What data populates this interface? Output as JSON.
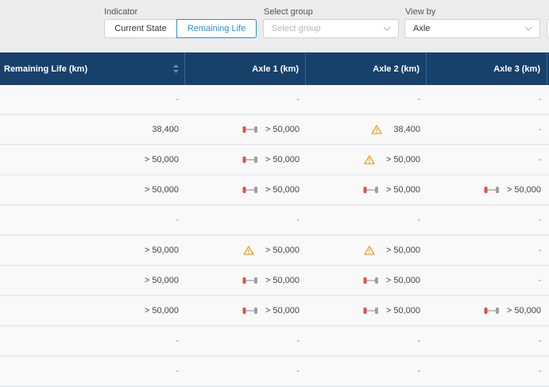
{
  "toolbar": {
    "indicator_label": "Indicator",
    "indicator_options": [
      "Current State",
      "Remaining Life"
    ],
    "indicator_selected": "Remaining Life",
    "group_label": "Select group",
    "group_placeholder": "Select group",
    "viewby_label": "View by",
    "viewby_value": "Axle"
  },
  "table": {
    "headers": [
      "Remaining Life (km)",
      "Axle 1 (km)",
      "Axle 2 (km)",
      "Axle 3 (km)"
    ],
    "rows": [
      [
        {
          "text": "-",
          "icon": ""
        },
        {
          "text": "-",
          "icon": ""
        },
        {
          "text": "-",
          "icon": ""
        },
        {
          "text": "-",
          "icon": ""
        }
      ],
      [
        {
          "text": "38,400",
          "icon": ""
        },
        {
          "text": "> 50,000",
          "icon": "tire-wear-icon"
        },
        {
          "text": "38,400",
          "icon": "warning-icon"
        },
        {
          "text": "-",
          "icon": ""
        }
      ],
      [
        {
          "text": "> 50,000",
          "icon": ""
        },
        {
          "text": "> 50,000",
          "icon": "tire-wear-icon"
        },
        {
          "text": "> 50,000",
          "icon": "warning-icon"
        },
        {
          "text": "-",
          "icon": ""
        }
      ],
      [
        {
          "text": "> 50,000",
          "icon": ""
        },
        {
          "text": "> 50,000",
          "icon": "tire-wear-icon"
        },
        {
          "text": "> 50,000",
          "icon": "tire-wear-icon"
        },
        {
          "text": "> 50,000",
          "icon": "tire-wear-icon"
        }
      ],
      [
        {
          "text": "-",
          "icon": ""
        },
        {
          "text": "-",
          "icon": ""
        },
        {
          "text": "-",
          "icon": ""
        },
        {
          "text": "-",
          "icon": ""
        }
      ],
      [
        {
          "text": "> 50,000",
          "icon": ""
        },
        {
          "text": "> 50,000",
          "icon": "warning-icon"
        },
        {
          "text": "> 50,000",
          "icon": "warning-icon"
        },
        {
          "text": "-",
          "icon": ""
        }
      ],
      [
        {
          "text": "> 50,000",
          "icon": ""
        },
        {
          "text": "> 50,000",
          "icon": "tire-wear-icon"
        },
        {
          "text": "> 50,000",
          "icon": "tire-wear-icon"
        },
        {
          "text": "-",
          "icon": ""
        }
      ],
      [
        {
          "text": "> 50,000",
          "icon": ""
        },
        {
          "text": "> 50,000",
          "icon": "tire-wear-icon"
        },
        {
          "text": "> 50,000",
          "icon": "tire-wear-icon"
        },
        {
          "text": "> 50,000",
          "icon": "tire-wear-icon"
        }
      ],
      [
        {
          "text": "-",
          "icon": ""
        },
        {
          "text": "-",
          "icon": ""
        },
        {
          "text": "-",
          "icon": ""
        },
        {
          "text": "-",
          "icon": ""
        }
      ],
      [
        {
          "text": "-",
          "icon": ""
        },
        {
          "text": "-",
          "icon": ""
        },
        {
          "text": "-",
          "icon": ""
        },
        {
          "text": "-",
          "icon": ""
        }
      ]
    ]
  },
  "colors": {
    "header_bg": "#17416b",
    "accent": "#2d8fd5",
    "tire_red": "#d9534f",
    "tire_grey": "#9aa0a6",
    "warning": "#f0a020"
  }
}
